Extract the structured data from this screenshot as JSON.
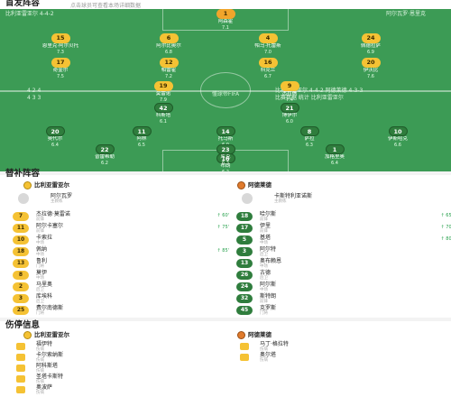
{
  "header": {
    "title": "首发阵容",
    "subtitle": "点击球员可查看本场详细数据"
  },
  "pitch": {
    "home_header": "比利亚雷亚尔 4-4-2",
    "home_coach": "阿尔瓦罗·恩里克",
    "away_header": "阿德莱德 4-3-3",
    "away_coach": "卡斯特利亚诺斯",
    "center_label": "懂球帝FIFA",
    "home_team_short": "4-4-2",
    "away_team_short": "4-3-3",
    "sub_left": "4  2  4",
    "sub_left2": "4  3  3",
    "sub_right": "比利亚雷亚尔 4-4-2  阿德莱德 4-3-3",
    "sub_right2": "比赛数据 统计 比利亚雷亚尔"
  },
  "home_players": [
    {
      "num": "1",
      "name": "阿森霍",
      "rating": "7.1"
    },
    {
      "num": "15",
      "name": "恩里克·阿尔贝托",
      "rating": "7.3"
    },
    {
      "num": "6",
      "name": "阿尔比奥尔",
      "rating": "6.8"
    },
    {
      "num": "4",
      "name": "帕乌·托雷斯",
      "rating": "7.0"
    },
    {
      "num": "24",
      "name": "佩德拉萨",
      "rating": "6.9"
    },
    {
      "num": "17",
      "name": "奇奎尔",
      "rating": "7.5"
    },
    {
      "num": "12",
      "name": "帕雷霍",
      "rating": "7.2"
    },
    {
      "num": "16",
      "name": "科克兰",
      "rating": "6.7"
    },
    {
      "num": "20",
      "name": "伊沃比",
      "rating": "7.6"
    },
    {
      "num": "19",
      "name": "莫雷诺",
      "rating": "7.9"
    },
    {
      "num": "9",
      "name": "杰拉德",
      "rating": "7.4"
    }
  ],
  "away_players": [
    {
      "num": "16",
      "name": "布朗",
      "rating": "6.2"
    },
    {
      "num": "20",
      "name": "奥代尔",
      "rating": "6.4"
    },
    {
      "num": "11",
      "name": "阿林",
      "rating": "6.5"
    },
    {
      "num": "14",
      "name": "托马斯",
      "rating": "6.0"
    },
    {
      "num": "8",
      "name": "萨拉",
      "rating": "6.3"
    },
    {
      "num": "10",
      "name": "伊斯哈克",
      "rating": "6.6"
    },
    {
      "num": "42",
      "name": "科斯塔",
      "rating": "6.1"
    },
    {
      "num": "21",
      "name": "博伊尔",
      "rating": "6.0"
    },
    {
      "num": "22",
      "name": "普雷希勒",
      "rating": "6.2"
    },
    {
      "num": "23",
      "name": "库克",
      "rating": "6.3"
    },
    {
      "num": "1",
      "name": "加格里奥",
      "rating": "6.4"
    }
  ],
  "bench": {
    "title": "替补阵容",
    "home_team": "比利亚雷亚尔",
    "away_team": "阿德莱德",
    "home_coach": "阿尔瓦罗",
    "home_coach_role": "主教练",
    "away_coach": "卡斯特利亚诺斯",
    "away_coach_role": "主教练",
    "home": [
      {
        "num": "7",
        "name": "杰拉德·莫雷诺",
        "pos": "前锋",
        "ev": "↑ 60'"
      },
      {
        "num": "11",
        "name": "阿尔卡塞尔",
        "pos": "前锋",
        "ev": "↑ 75'"
      },
      {
        "num": "10",
        "name": "卡索拉",
        "pos": "中场",
        "ev": ""
      },
      {
        "num": "18",
        "name": "佩纳",
        "pos": "中场",
        "ev": "↑ 85'"
      },
      {
        "num": "13",
        "name": "鲁利",
        "pos": "门将",
        "ev": ""
      },
      {
        "num": "8",
        "name": "莫伊",
        "pos": "中场",
        "ev": ""
      },
      {
        "num": "2",
        "name": "马里奥",
        "pos": "后卫",
        "ev": ""
      },
      {
        "num": "3",
        "name": "库埃科",
        "pos": "后卫",
        "ev": ""
      },
      {
        "num": "25",
        "name": "费尔南德斯",
        "pos": "门将",
        "ev": ""
      }
    ],
    "away": [
      {
        "num": "18",
        "name": "哈尔斯",
        "pos": "前锋",
        "ev": "↑ 65'"
      },
      {
        "num": "17",
        "name": "伊里",
        "pos": "前锋",
        "ev": "↑ 70'"
      },
      {
        "num": "5",
        "name": "基塔",
        "pos": "中场",
        "ev": "↑ 80'"
      },
      {
        "num": "3",
        "name": "阿尔特",
        "pos": "后卫",
        "ev": ""
      },
      {
        "num": "13",
        "name": "奥布赖恩",
        "pos": "中场",
        "ev": ""
      },
      {
        "num": "26",
        "name": "古德",
        "pos": "后卫",
        "ev": ""
      },
      {
        "num": "24",
        "name": "阿尔斯",
        "pos": "中场",
        "ev": ""
      },
      {
        "num": "32",
        "name": "斯特朗",
        "pos": "前锋",
        "ev": ""
      },
      {
        "num": "45",
        "name": "克罗斯",
        "pos": "门将",
        "ev": ""
      }
    ]
  },
  "injuries": {
    "title": "伤停信息",
    "home_team": "比利亚雷亚尔",
    "away_team": "阿德莱德",
    "home": [
      {
        "name": "福伊特",
        "reason": "伤病"
      },
      {
        "name": "卡尔索纳斯",
        "reason": "伤病"
      },
      {
        "name": "阿科斯塔",
        "reason": "伤病"
      },
      {
        "name": "圣塔卡斯特",
        "reason": "伤病"
      },
      {
        "name": "奥波萨",
        "reason": "伤病"
      }
    ],
    "away": [
      {
        "name": "马丁·格拉特",
        "reason": "伤病"
      },
      {
        "name": "奥尔塔",
        "reason": "伤病"
      }
    ]
  },
  "colors": {
    "pitch": "#3c9b55",
    "home_jersey": "#f5c234",
    "away_jersey": "#2f7d3d"
  }
}
